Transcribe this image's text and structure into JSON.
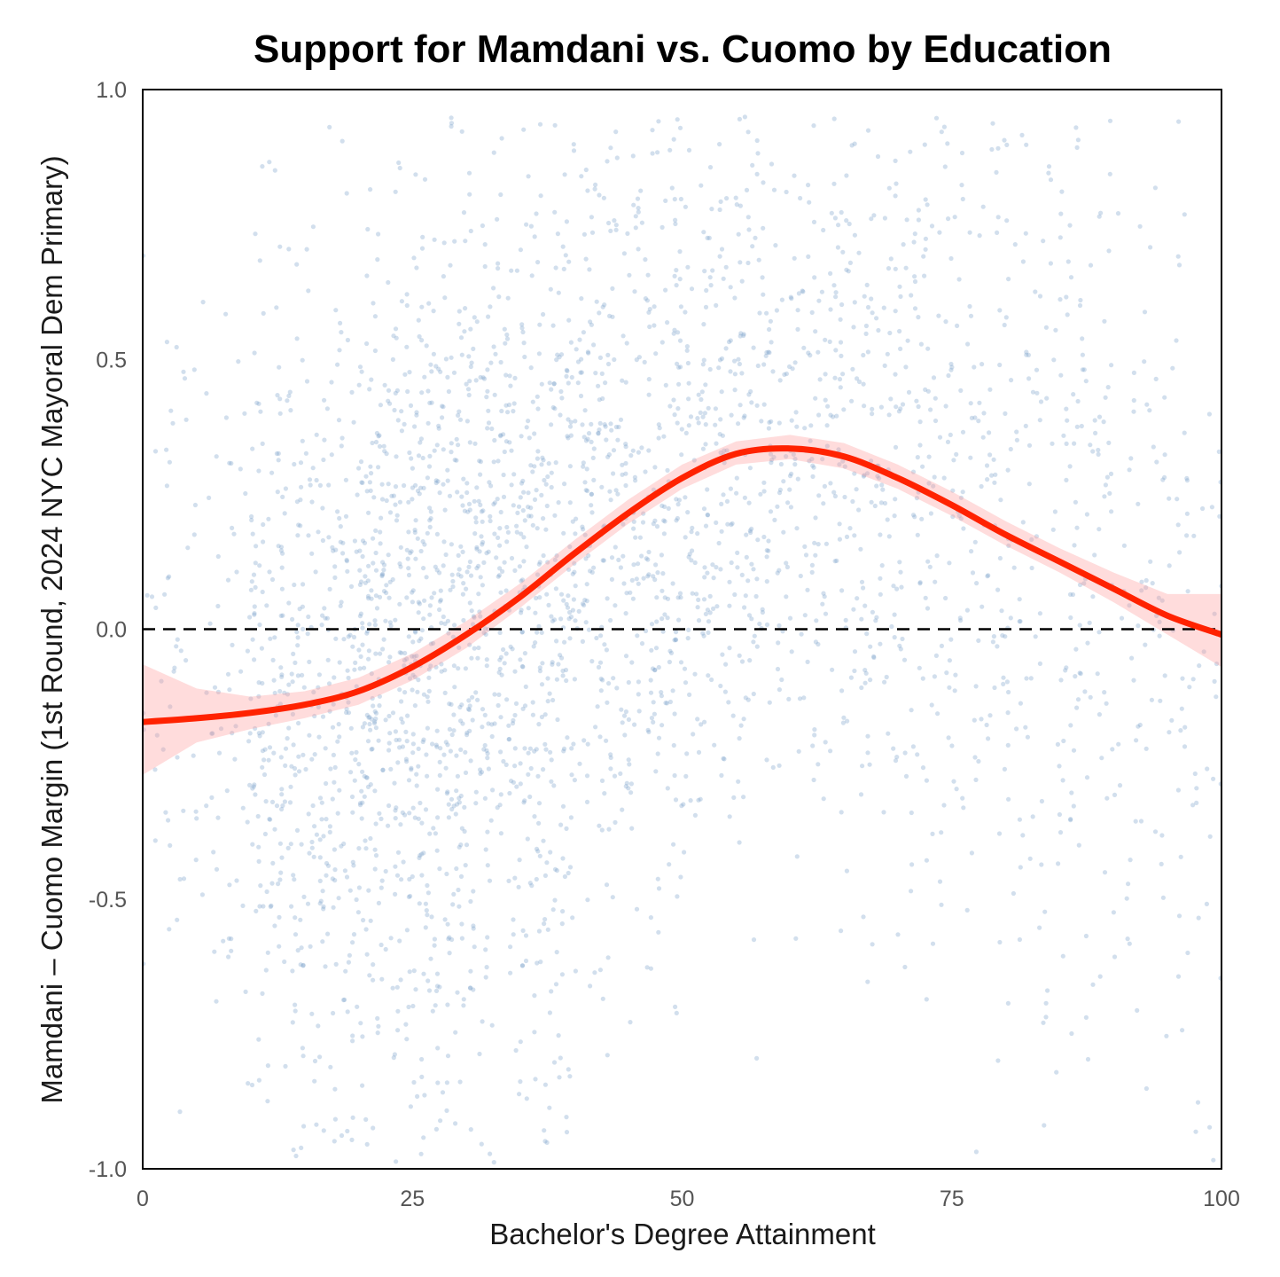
{
  "chart_data": {
    "type": "scatter",
    "title": "Support for Mamdani vs. Cuomo by Education",
    "xlabel": "Bachelor's Degree Attainment",
    "ylabel": "Mamdani – Cuomo Margin (1st Round, 2024 NYC Mayoral Dem Primary)",
    "xlim": [
      0,
      100
    ],
    "ylim": [
      -1.0,
      1.0
    ],
    "x_ticks": [
      0,
      25,
      50,
      75,
      100
    ],
    "x_tick_labels": [
      "0",
      "25",
      "50",
      "75",
      "100"
    ],
    "y_ticks": [
      1.0,
      0.5,
      0.0,
      -0.5,
      -1.0
    ],
    "y_tick_labels": [
      "1.0",
      "0.5",
      "0.0",
      "-0.5",
      "-1.0"
    ],
    "grid": false,
    "reference_line": {
      "y": 0.0,
      "style": "dashed",
      "color": "#000000"
    },
    "scatter_color": "#7fa3cc",
    "trend_color": "#ff2200",
    "band_color": "#ff9c9c",
    "trend": {
      "x": [
        0,
        5,
        10,
        15,
        20,
        25,
        30,
        35,
        40,
        45,
        50,
        55,
        60,
        65,
        70,
        75,
        80,
        85,
        90,
        95,
        100
      ],
      "y": [
        -0.172,
        -0.165,
        -0.155,
        -0.14,
        -0.115,
        -0.07,
        -0.01,
        0.06,
        0.14,
        0.215,
        0.28,
        0.325,
        0.335,
        0.32,
        0.28,
        0.23,
        0.175,
        0.125,
        0.075,
        0.025,
        -0.01
      ],
      "ci_low": [
        -0.27,
        -0.21,
        -0.185,
        -0.165,
        -0.14,
        -0.095,
        -0.035,
        0.04,
        0.12,
        0.195,
        0.26,
        0.305,
        0.315,
        0.298,
        0.26,
        0.21,
        0.155,
        0.105,
        0.05,
        -0.01,
        -0.07
      ],
      "ci_high": [
        -0.065,
        -0.11,
        -0.125,
        -0.115,
        -0.09,
        -0.045,
        0.015,
        0.085,
        0.165,
        0.24,
        0.305,
        0.348,
        0.36,
        0.345,
        0.305,
        0.255,
        0.2,
        0.15,
        0.105,
        0.065,
        0.065
      ]
    },
    "scatter_density": [
      {
        "x": [
          0,
          10
        ],
        "y_mean": -0.05,
        "y_sd": 0.35,
        "count": 110
      },
      {
        "x": [
          10,
          20
        ],
        "y_mean": -0.15,
        "y_sd": 0.38,
        "count": 420
      },
      {
        "x": [
          20,
          30
        ],
        "y_mean": -0.08,
        "y_sd": 0.42,
        "count": 640
      },
      {
        "x": [
          30,
          40
        ],
        "y_mean": 0.05,
        "y_sd": 0.42,
        "count": 560
      },
      {
        "x": [
          40,
          50
        ],
        "y_mean": 0.18,
        "y_sd": 0.38,
        "count": 420
      },
      {
        "x": [
          50,
          60
        ],
        "y_mean": 0.3,
        "y_sd": 0.33,
        "count": 320
      },
      {
        "x": [
          60,
          70
        ],
        "y_mean": 0.3,
        "y_sd": 0.36,
        "count": 280
      },
      {
        "x": [
          70,
          80
        ],
        "y_mean": 0.22,
        "y_sd": 0.4,
        "count": 230
      },
      {
        "x": [
          80,
          90
        ],
        "y_mean": 0.12,
        "y_sd": 0.42,
        "count": 200
      },
      {
        "x": [
          90,
          100
        ],
        "y_mean": 0.02,
        "y_sd": 0.45,
        "count": 130
      }
    ]
  }
}
